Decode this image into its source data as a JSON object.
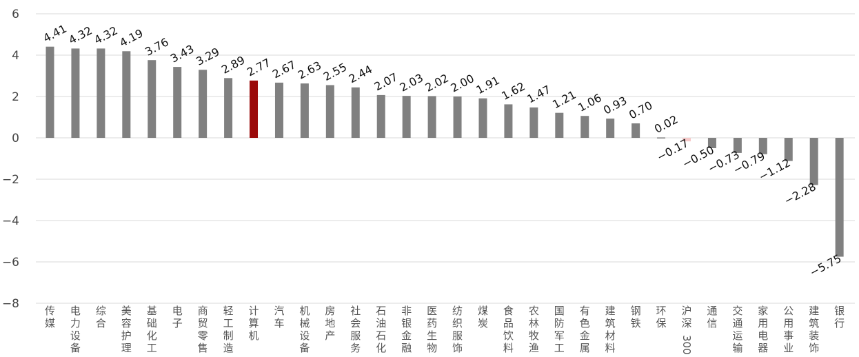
{
  "chart_data": {
    "type": "bar",
    "title": "",
    "xlabel": "",
    "ylabel": "",
    "ylim": [
      -8,
      6
    ],
    "yticks": [
      6,
      4,
      2,
      0,
      -2,
      -4,
      -6,
      -8
    ],
    "grid": true,
    "legend": "none",
    "categories": [
      "传媒",
      "电力设备",
      "综合",
      "美容护理",
      "基础化工",
      "电子",
      "商贸零售",
      "轻工制造",
      "计算机",
      "汽车",
      "机械设备",
      "房地产",
      "社会服务",
      "石油石化",
      "非银金融",
      "医药生物",
      "纺织服饰",
      "煤炭",
      "食品饮料",
      "农林牧渔",
      "国防军工",
      "有色金属",
      "建筑材料",
      "钢铁",
      "环保",
      "沪深300",
      "通信",
      "交通运输",
      "家用电器",
      "公用事业",
      "建筑装饰",
      "银行"
    ],
    "values": [
      4.41,
      4.32,
      4.32,
      4.19,
      3.76,
      3.43,
      3.29,
      2.89,
      2.77,
      2.67,
      2.63,
      2.55,
      2.44,
      2.07,
      2.03,
      2.02,
      2.0,
      1.91,
      1.62,
      1.47,
      1.21,
      1.06,
      0.93,
      0.7,
      0.02,
      -0.17,
      -0.5,
      -0.73,
      -0.79,
      -1.12,
      -2.28,
      -5.75
    ],
    "data_labels": [
      "4.41",
      "4.32",
      "4.32",
      "4.19",
      "3.76",
      "3.43",
      "3.29",
      "2.89",
      "2.77",
      "2.67",
      "2.63",
      "2.55",
      "2.44",
      "2.07",
      "2.03",
      "2.02",
      "2.00",
      "1.91",
      "1.62",
      "1.47",
      "1.21",
      "1.06",
      "0.93",
      "0.70",
      "0.02",
      "−0.17",
      "−0.50",
      "−0.73",
      "−0.79",
      "−1.12",
      "−2.28",
      "−5.75"
    ],
    "colors": {
      "default": "#808080",
      "highlight": "#9b0a0a",
      "benchmark": "#f6c9c9"
    },
    "highlight_category": "计算机",
    "benchmark_category": "沪深300"
  }
}
